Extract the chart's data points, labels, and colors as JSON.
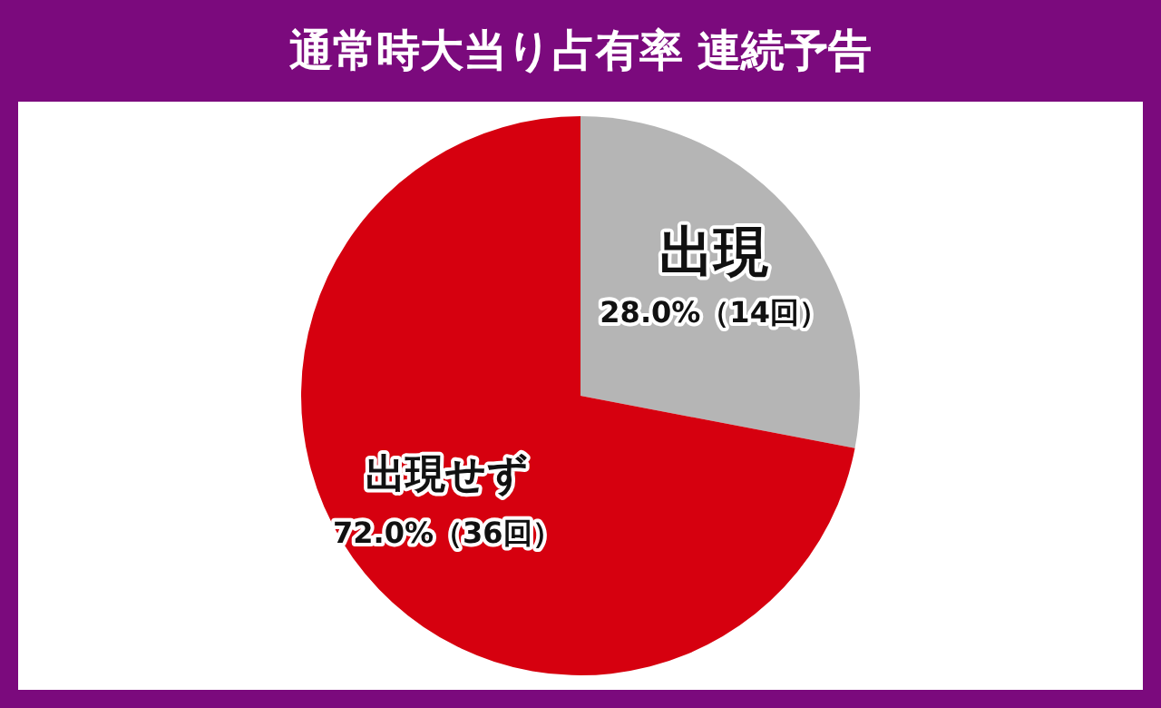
{
  "chart_data": {
    "type": "pie",
    "title": "通常時大当り占有率 連続予告",
    "categories": [
      "出現",
      "出現せず"
    ],
    "values": [
      28.0,
      72.0
    ],
    "colors": [
      "#b5b5b5",
      "#d6000f"
    ],
    "value_labels": [
      "28.0%（14回）",
      "72.0%（36回）"
    ],
    "legend": false
  }
}
